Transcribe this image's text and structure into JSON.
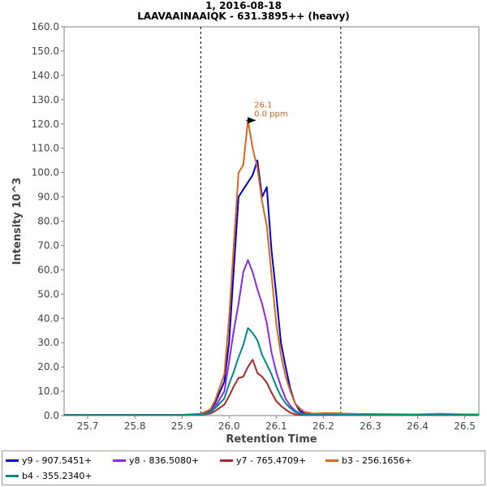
{
  "chart_data": {
    "type": "line",
    "title": "1, 2016-08-18",
    "subtitle": "LAAVAAINAAIQK - 631.3895++ (heavy)",
    "xlabel": "Retention Time",
    "ylabel": "Intensity 10^3",
    "xlim": [
      25.65,
      26.53
    ],
    "ylim": [
      0,
      160
    ],
    "x_ticks": [
      "25.7",
      "25.8",
      "25.9",
      "26.0",
      "26.1",
      "26.2",
      "26.3",
      "26.4",
      "26.5"
    ],
    "y_ticks": [
      "0.0",
      "10.0",
      "20.0",
      "30.0",
      "40.0",
      "50.0",
      "60.0",
      "70.0",
      "80.0",
      "90.0",
      "100.0",
      "110.0",
      "120.0",
      "130.0",
      "140.0",
      "150.0",
      "160.0"
    ],
    "vlines": [
      25.94,
      26.237
    ],
    "grid": false,
    "legend_position": "bottom",
    "annotation": {
      "x": 26.06,
      "y": 121.5,
      "lines": [
        "26.1",
        "0.0 ppm"
      ],
      "color": "#c8641e"
    },
    "x": [
      25.65,
      25.7,
      25.8,
      25.9,
      25.94,
      25.96,
      25.97,
      25.99,
      26.0,
      26.01,
      26.02,
      26.03,
      26.04,
      26.05,
      26.06,
      26.07,
      26.08,
      26.09,
      26.1,
      26.11,
      26.12,
      26.13,
      26.14,
      26.15,
      26.16,
      26.18,
      26.2,
      26.22,
      26.25,
      26.3,
      26.4,
      26.45,
      26.5,
      26.53
    ],
    "series": [
      {
        "name": "y9 - 907.5451+",
        "color": "#0000d4",
        "values": [
          0.3,
          0.3,
          0.3,
          0.3,
          0.6,
          2,
          5,
          14,
          30,
          60,
          90,
          93,
          96,
          99,
          105,
          90,
          94,
          68,
          50,
          30,
          20,
          11,
          5,
          2,
          1,
          0.5,
          0.8,
          0.8,
          0.7,
          0.6,
          0.5,
          0.4,
          0.4,
          0.4
        ]
      },
      {
        "name": "y8 - 836.5080+",
        "color": "#8a2be2",
        "values": [
          0.3,
          0.3,
          0.3,
          0.3,
          0.5,
          1.5,
          3.5,
          10,
          22,
          35,
          46,
          59,
          64,
          59,
          52,
          46,
          38,
          26,
          18,
          12,
          7,
          4,
          2,
          1,
          0.8,
          0.4,
          0.4,
          0.4,
          0.3,
          0.3,
          0.3,
          0.3,
          0.3,
          0.3
        ]
      },
      {
        "name": "y7 - 765.4709+",
        "color": "#a52a2a",
        "values": [
          0.2,
          0.2,
          0.2,
          0.2,
          0.3,
          0.8,
          1.8,
          4.5,
          8,
          12,
          15.5,
          16,
          20,
          23,
          17.5,
          16,
          13.5,
          9.5,
          6,
          4,
          2.5,
          1.2,
          0.5,
          0.3,
          0.2,
          0.2,
          0.2,
          0.2,
          0.2,
          0.2,
          0.2,
          0.2,
          0.2,
          0.2
        ]
      },
      {
        "name": "b3 - 256.1656+",
        "color": "#d2691e",
        "values": [
          0.3,
          0.3,
          0.3,
          0.3,
          0.8,
          2.5,
          6,
          17,
          40,
          70,
          100,
          103,
          121.5,
          110,
          102,
          88,
          78,
          58,
          38,
          25,
          16,
          10,
          5,
          3,
          1.5,
          0.8,
          1.0,
          1.0,
          0.8,
          0.6,
          0.5,
          0.8,
          0.5,
          0.5
        ]
      },
      {
        "name": "b4 - 355.2340+",
        "color": "#008b8b",
        "values": [
          0.2,
          0.2,
          0.2,
          0.2,
          0.4,
          1.2,
          3,
          7,
          13,
          18,
          24,
          29,
          36,
          34,
          31,
          25,
          21,
          17,
          12,
          8,
          5,
          3,
          1.5,
          0.8,
          0.4,
          0.3,
          0.3,
          0.3,
          0.3,
          0.3,
          0.3,
          0.3,
          0.3,
          0.3
        ]
      }
    ]
  }
}
